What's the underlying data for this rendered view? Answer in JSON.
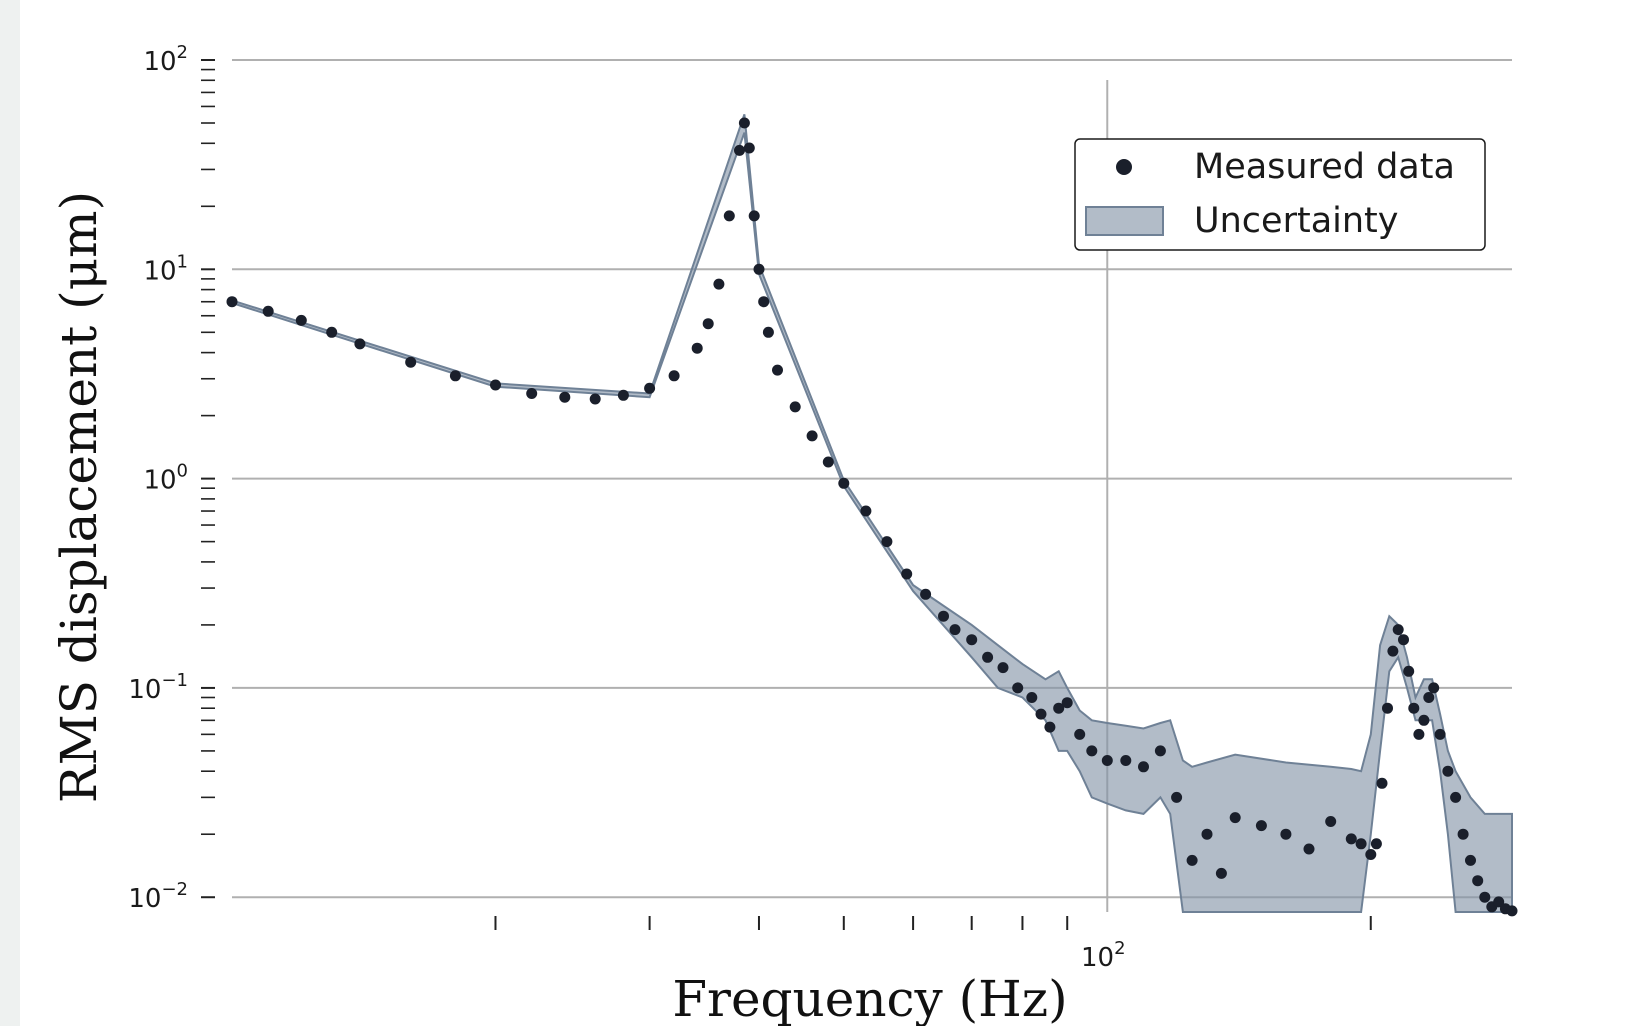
{
  "chart_data": {
    "type": "scatter",
    "title": "",
    "xlabel": "Frequency (Hz)",
    "ylabel": "RMS displacement (μm)",
    "x_scale": "log",
    "y_scale": "log",
    "xlim": [
      10,
      290
    ],
    "ylim": [
      0.0085,
      100
    ],
    "grid": true,
    "legend_position": "top-right",
    "x_tick_labels": [
      {
        "value": 100,
        "base": "10",
        "exp": "2"
      }
    ],
    "y_tick_labels": [
      {
        "value": 100,
        "base": "10",
        "exp": "2"
      },
      {
        "value": 10,
        "base": "10",
        "exp": "1"
      },
      {
        "value": 1,
        "base": "10",
        "exp": "0"
      },
      {
        "value": 0.1,
        "base": "10",
        "exp": "−1"
      },
      {
        "value": 0.01,
        "base": "10",
        "exp": "−2"
      }
    ],
    "series": [
      {
        "name": "Measured data",
        "kind": "points",
        "color": "#1a1f2b",
        "x": [
          10.0,
          11.0,
          12.0,
          13.0,
          14.0,
          16.0,
          18.0,
          20.0,
          22.0,
          24.0,
          26.0,
          28.0,
          30.0,
          32.0,
          34.0,
          35.0,
          36.0,
          37.0,
          38.0,
          38.5,
          39.0,
          39.5,
          40.0,
          40.5,
          41.0,
          42.0,
          44.0,
          46.0,
          48.0,
          50.0,
          53.0,
          56.0,
          59.0,
          62.0,
          65.0,
          67.0,
          70.0,
          73.0,
          76.0,
          79.0,
          82.0,
          84.0,
          86.0,
          88.0,
          90.0,
          93.0,
          96.0,
          100.0,
          105.0,
          110.0,
          115.0,
          120.0,
          125.0,
          130.0,
          135.0,
          140.0,
          150.0,
          160.0,
          170.0,
          180.0,
          190.0,
          195.0,
          200.0,
          203.0,
          206.0,
          209.0,
          212.0,
          215.0,
          218.0,
          221.0,
          224.0,
          227.0,
          230.0,
          233.0,
          236.0,
          240.0,
          245.0,
          250.0,
          255.0,
          260.0,
          265.0,
          270.0,
          275.0,
          280.0,
          285.0,
          290.0
        ],
        "y": [
          7.0,
          6.3,
          5.7,
          5.0,
          4.4,
          3.6,
          3.1,
          2.8,
          2.55,
          2.45,
          2.4,
          2.5,
          2.7,
          3.1,
          4.2,
          5.5,
          8.5,
          18.0,
          37.0,
          50.0,
          38.0,
          18.0,
          10.0,
          7.0,
          5.0,
          3.3,
          2.2,
          1.6,
          1.2,
          0.95,
          0.7,
          0.5,
          0.35,
          0.28,
          0.22,
          0.19,
          0.17,
          0.14,
          0.125,
          0.1,
          0.09,
          0.075,
          0.065,
          0.08,
          0.085,
          0.06,
          0.05,
          0.045,
          0.045,
          0.042,
          0.05,
          0.03,
          0.015,
          0.02,
          0.013,
          0.024,
          0.022,
          0.02,
          0.017,
          0.023,
          0.019,
          0.018,
          0.016,
          0.018,
          0.035,
          0.08,
          0.15,
          0.19,
          0.17,
          0.12,
          0.08,
          0.06,
          0.07,
          0.09,
          0.1,
          0.06,
          0.04,
          0.03,
          0.02,
          0.015,
          0.012,
          0.01,
          0.009,
          0.0095,
          0.0088,
          0.0086
        ]
      },
      {
        "name": "Uncertainty",
        "kind": "band",
        "color": "#7d8fa3",
        "x": [
          10.0,
          20.0,
          30.0,
          38.5,
          40.0,
          50.0,
          60.0,
          70.0,
          75.0,
          80.0,
          85.0,
          88.0,
          90.0,
          93.0,
          96.0,
          100.0,
          105.0,
          110.0,
          115.0,
          118.0,
          122.0,
          125.0,
          130.0,
          140.0,
          160.0,
          180.0,
          190.0,
          195.0,
          200.0,
          205.0,
          210.0,
          215.0,
          220.0,
          225.0,
          230.0,
          235.0,
          240.0,
          245.0,
          250.0,
          260.0,
          270.0,
          280.0,
          290.0
        ],
        "upper": [
          7.1,
          2.85,
          2.55,
          55.0,
          10.5,
          0.98,
          0.31,
          0.2,
          0.16,
          0.13,
          0.11,
          0.12,
          0.1,
          0.078,
          0.07,
          0.068,
          0.066,
          0.064,
          0.068,
          0.07,
          0.045,
          0.042,
          0.044,
          0.048,
          0.044,
          0.042,
          0.041,
          0.04,
          0.06,
          0.16,
          0.22,
          0.2,
          0.14,
          0.09,
          0.11,
          0.11,
          0.075,
          0.05,
          0.04,
          0.03,
          0.025,
          0.025,
          0.025
        ],
        "lower": [
          6.9,
          2.75,
          2.45,
          45.0,
          9.5,
          0.92,
          0.29,
          0.14,
          0.1,
          0.09,
          0.07,
          0.05,
          0.05,
          0.04,
          0.03,
          0.028,
          0.026,
          0.025,
          0.03,
          0.025,
          0.0085,
          0.0085,
          0.0085,
          0.0085,
          0.0085,
          0.0085,
          0.0085,
          0.0085,
          0.02,
          0.05,
          0.12,
          0.14,
          0.1,
          0.07,
          0.07,
          0.07,
          0.04,
          0.02,
          0.0085,
          0.0085,
          0.0085,
          0.0085,
          0.0085
        ]
      }
    ],
    "legend": [
      {
        "label": "Measured data",
        "symbol": "dot"
      },
      {
        "label": "Uncertainty",
        "symbol": "band"
      }
    ]
  },
  "colors": {
    "dot": "#1a1f2b",
    "band_fill": "#8393a6",
    "band_edge": "#6f8196",
    "grid": "#b0b0b0",
    "axis_text": "#1a1a1a"
  }
}
